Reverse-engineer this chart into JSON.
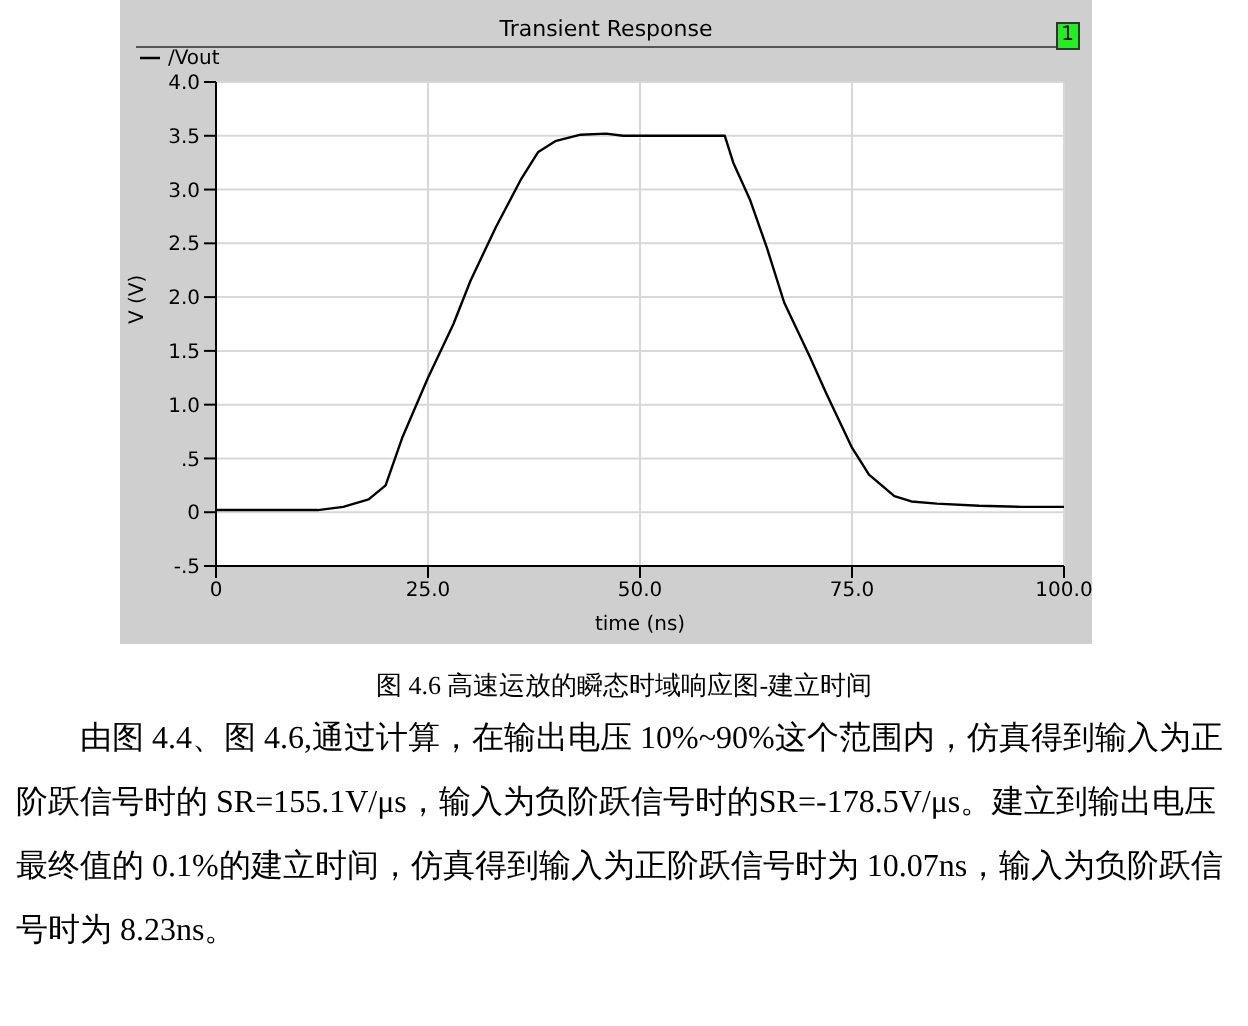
{
  "chart_data": {
    "type": "line",
    "title": "Transient Response",
    "xlabel": "time (ns)",
    "ylabel": "V (V)",
    "x": [
      0,
      5,
      10,
      12,
      15,
      18,
      20,
      22,
      25,
      28,
      30,
      33,
      36,
      38,
      40,
      43,
      46,
      48,
      55,
      60,
      61,
      63,
      65,
      67,
      70,
      72,
      75,
      77,
      80,
      82,
      85,
      90,
      95,
      100
    ],
    "series": [
      {
        "name": "/Vout",
        "color": "#000000",
        "values": [
          0.02,
          0.02,
          0.02,
          0.02,
          0.05,
          0.12,
          0.25,
          0.7,
          1.25,
          1.75,
          2.15,
          2.65,
          3.1,
          3.35,
          3.45,
          3.51,
          3.52,
          3.5,
          3.5,
          3.5,
          3.25,
          2.9,
          2.45,
          1.95,
          1.45,
          1.1,
          0.6,
          0.35,
          0.15,
          0.1,
          0.08,
          0.06,
          0.05,
          0.05
        ]
      }
    ],
    "xlim": [
      0,
      100
    ],
    "xticks": [
      0,
      {
        "value": 25,
        "label": "25.0"
      },
      {
        "value": 50,
        "label": "50.0"
      },
      {
        "value": 75,
        "label": "75.0"
      },
      {
        "value": 100,
        "label": "100.0"
      }
    ],
    "ylim": [
      -0.5,
      4
    ],
    "yticks": [
      {
        "value": -0.5,
        "label": "-.5"
      },
      0,
      {
        "value": 0.5,
        "label": ".5"
      },
      {
        "value": 1,
        "label": "1.0"
      },
      {
        "value": 1.5,
        "label": "1.5"
      },
      {
        "value": 2,
        "label": "2.0"
      },
      {
        "value": 2.5,
        "label": "2.5"
      },
      {
        "value": 3,
        "label": "3.0"
      },
      {
        "value": 3.5,
        "label": "3.5"
      },
      {
        "value": 4,
        "label": "4.0"
      }
    ],
    "grid": true,
    "legend": "top left",
    "marker": "none",
    "line_style": "solid",
    "annotations": [
      "1",
      "图 4.6 高速运放的瞬态时域响应图-建立时间",
      "由图 4.4、图 4.6,通过计算，在输出电压 10%~90%这个范围内，仿真得到输入为正阶跃信号时的 SR=155.1V/μs，输入为负阶跃信号时的SR=-178.5V/μs。建立到输出电压最终值的 0.1%的建立时间，仿真得到输入为正阶跃信号时为 10.07ns，输入为负阶跃信号时为 8.23ns。"
    ]
  }
}
